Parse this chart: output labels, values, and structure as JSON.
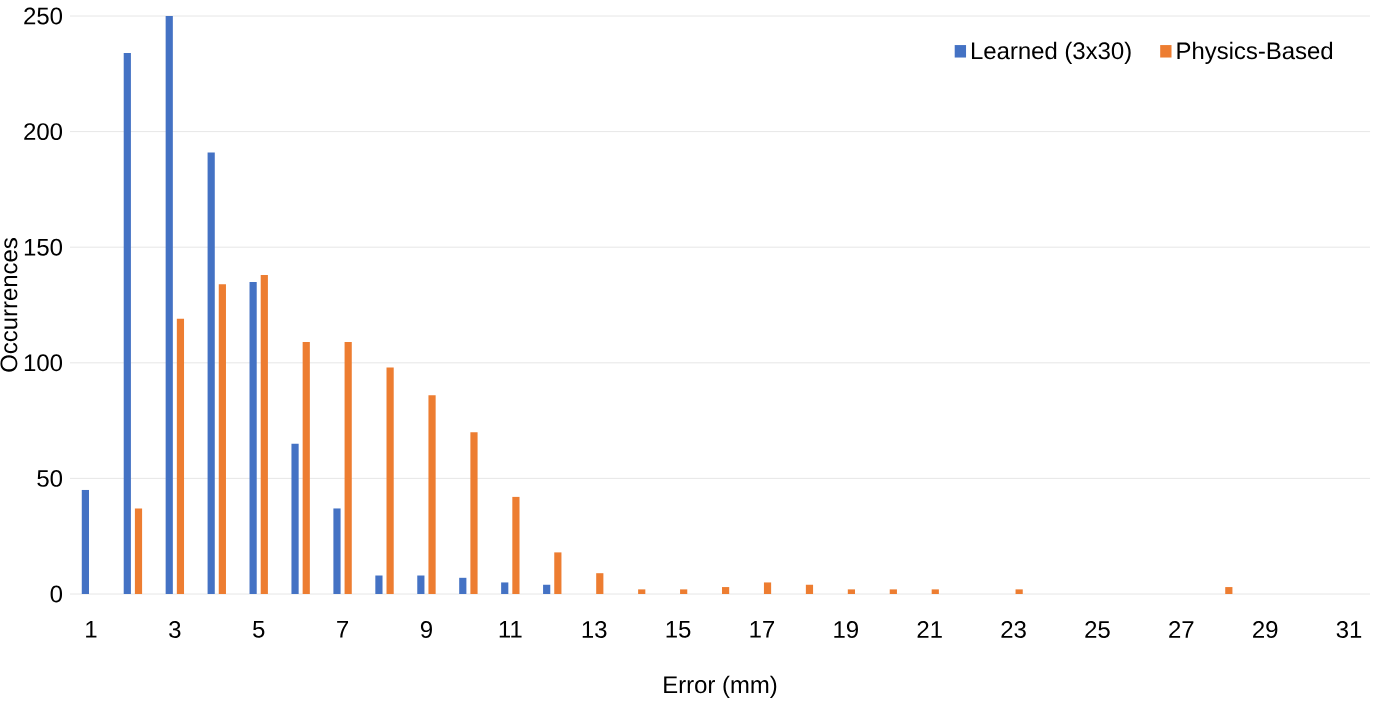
{
  "chart_data": {
    "type": "bar",
    "xlabel": "Error (mm)",
    "ylabel": "Occurrences",
    "categories": [
      "1",
      null,
      "3",
      null,
      "5",
      null,
      "7",
      null,
      "9",
      null,
      "11",
      null,
      "13",
      null,
      "15",
      null,
      "17",
      null,
      "19",
      null,
      "21",
      null,
      "23",
      null,
      "25",
      null,
      "27",
      null,
      "29",
      null,
      "31"
    ],
    "series": [
      {
        "name": "Learned (3x30)",
        "color": "#4472c4",
        "values": [
          45,
          234,
          250,
          191,
          135,
          65,
          37,
          8,
          8,
          7,
          5,
          4,
          0,
          0,
          0,
          0,
          0,
          0,
          0,
          0,
          0,
          0,
          0,
          0,
          0,
          0,
          0,
          0,
          0,
          0,
          0
        ]
      },
      {
        "name": "Physics-Based",
        "color": "#ed7d31",
        "values": [
          0,
          37,
          119,
          134,
          138,
          109,
          109,
          98,
          86,
          70,
          42,
          18,
          9,
          2,
          2,
          3,
          5,
          4,
          2,
          2,
          2,
          0,
          2,
          0,
          0,
          0,
          0,
          3,
          0,
          0,
          0
        ]
      }
    ],
    "ylim": [
      0,
      250
    ],
    "yticks": [
      0,
      50,
      100,
      150,
      200,
      250
    ],
    "grid": "y",
    "legend": "top right"
  }
}
